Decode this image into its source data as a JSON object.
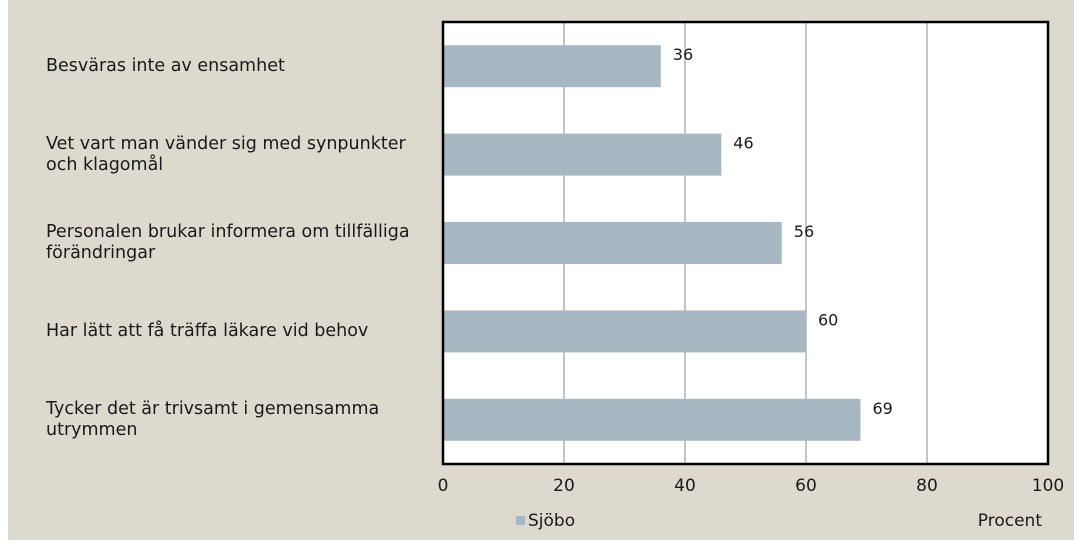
{
  "chart_data": {
    "type": "bar",
    "orientation": "horizontal",
    "categories": [
      "Besväras inte av ensamhet",
      "Vet vart man vänder sig med synpunkter och klagomål",
      "Personalen brukar informera om tillfälliga förändringar",
      "Har lätt att få träffa läkare vid behov",
      "Tycker det är trivsamt i gemensamma utrymmen"
    ],
    "series": [
      {
        "name": "Sjöbo",
        "values": [
          36,
          46,
          56,
          60,
          69
        ],
        "color": "#a7b8c2"
      }
    ],
    "data_labels": [
      "36",
      "46",
      "56",
      "60",
      "69"
    ],
    "xlabel": "Procent",
    "xlim": [
      0,
      100
    ],
    "xticks": [
      0,
      20,
      40,
      60,
      80,
      100
    ],
    "xtick_labels": [
      "0",
      "20",
      "40",
      "60",
      "80",
      "100"
    ],
    "grid": true,
    "legend_position": "bottom-left",
    "background_color": "#ddd9ce",
    "plot_background_color": "#ffffff"
  }
}
